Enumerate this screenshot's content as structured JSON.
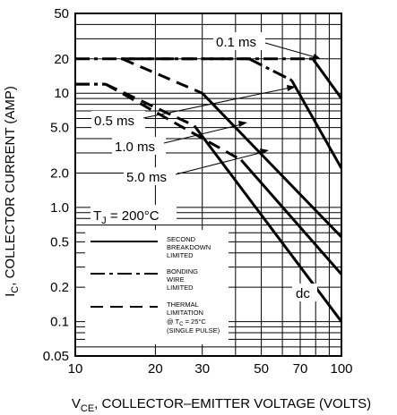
{
  "chart_data": {
    "type": "line",
    "xlabel_prefix": "V",
    "xlabel_sub": "CE",
    "xlabel_rest": ", COLLECTOR–EMITTER VOLTAGE (VOLTS)",
    "ylabel_prefix": "I",
    "ylabel_sub": "C",
    "ylabel_rest": ", COLLECTOR CURRENT (AMP)",
    "x_scale": "log",
    "y_scale": "log",
    "xlim": [
      10,
      100
    ],
    "ylim": [
      0.05,
      50
    ],
    "x_ticks": [
      10,
      20,
      30,
      50,
      70,
      100
    ],
    "x_tick_labels": [
      "10",
      "20",
      "30",
      "50",
      "70",
      "100"
    ],
    "y_ticks": [
      0.05,
      0.1,
      0.2,
      0.5,
      1.0,
      2.0,
      5.0,
      10,
      20,
      50
    ],
    "y_tick_labels": [
      "0.05",
      "0.1",
      "0.2",
      "0.5",
      "1.0",
      "2.0",
      "5.0",
      "10",
      "20",
      "50"
    ],
    "grid": true,
    "curves": [
      {
        "label": "0.1 ms",
        "segments": [
          {
            "style": "bonding",
            "points": [
              [
                10,
                20
              ],
              [
                78,
                20
              ]
            ]
          },
          {
            "style": "second",
            "points": [
              [
                78,
                20
              ],
              [
                100,
                9
              ]
            ]
          }
        ]
      },
      {
        "label": "0.5 ms",
        "segments": [
          {
            "style": "thermal",
            "points": [
              [
                15,
                20
              ],
              [
                45,
                20
              ]
            ]
          },
          {
            "style": "bonding",
            "points": [
              [
                45,
                20
              ],
              [
                65,
                13
              ]
            ]
          },
          {
            "style": "second",
            "points": [
              [
                65,
                13
              ],
              [
                100,
                2.2
              ]
            ]
          }
        ]
      },
      {
        "label": "1.0 ms",
        "segments": [
          {
            "style": "thermal",
            "points": [
              [
                15,
                20
              ],
              [
                30,
                10
              ]
            ]
          },
          {
            "style": "second",
            "points": [
              [
                30,
                10
              ],
              [
                100,
                0.55
              ]
            ]
          }
        ]
      },
      {
        "label": "5.0 ms",
        "segments": [
          {
            "style": "bonding",
            "points": [
              [
                10,
                12
              ],
              [
                13,
                12
              ]
            ]
          },
          {
            "style": "thermal",
            "points": [
              [
                13,
                12
              ],
              [
                42,
                2.6
              ]
            ]
          },
          {
            "style": "second",
            "points": [
              [
                42,
                2.6
              ],
              [
                100,
                0.26
              ]
            ]
          }
        ]
      },
      {
        "label": "dc",
        "segments": [
          {
            "style": "bonding",
            "points": [
              [
                10,
                12
              ],
              [
                13,
                12
              ]
            ]
          },
          {
            "style": "thermal",
            "points": [
              [
                13,
                12
              ],
              [
                28,
                5.2
              ]
            ]
          },
          {
            "style": "second",
            "points": [
              [
                28,
                5.2
              ],
              [
                100,
                0.1
              ]
            ]
          }
        ]
      }
    ],
    "annotations": {
      "tj_prefix": "T",
      "tj_sub": "J",
      "tj_rest": " = 200°C"
    },
    "legend": [
      {
        "style": "second",
        "lines": [
          "SECOND",
          "BREAKDOWN",
          "LIMITED"
        ]
      },
      {
        "style": "bonding",
        "lines": [
          "BONDING",
          "WIRE",
          "LIMITED"
        ]
      },
      {
        "style": "thermal",
        "lines": [
          "THERMAL",
          "LIMITATION",
          "@ T",
          "C",
          " = 25°C",
          "(SINGLE PULSE)"
        ]
      }
    ]
  }
}
